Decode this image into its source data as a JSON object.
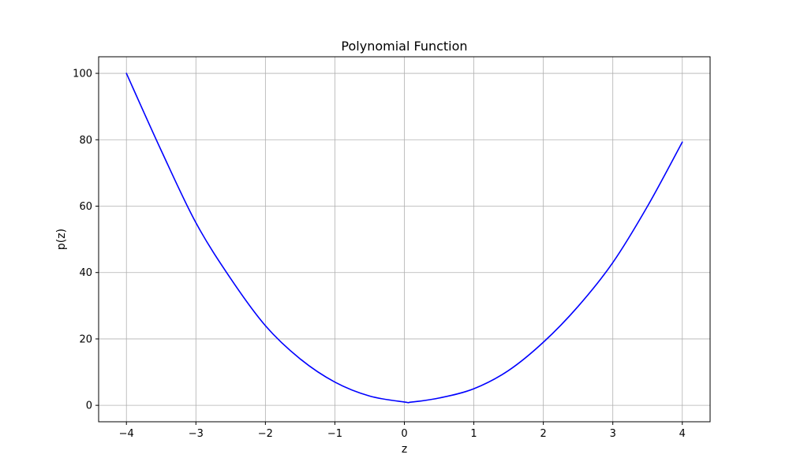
{
  "chart_data": {
    "type": "line",
    "title": "Polynomial Function",
    "xlabel": "z",
    "ylabel": "p(z)",
    "xlim": [
      -4.4,
      4.4
    ],
    "ylim": [
      -4.95,
      105
    ],
    "xticks": [
      -4,
      -3,
      -2,
      -1,
      0,
      1,
      2,
      3,
      4
    ],
    "xtick_labels": [
      "−4",
      "−3",
      "−2",
      "−1",
      "0",
      "1",
      "2",
      "3",
      "4"
    ],
    "yticks": [
      0,
      20,
      40,
      60,
      80,
      100
    ],
    "ytick_labels": [
      "0",
      "20",
      "40",
      "60",
      "80",
      "100"
    ],
    "grid": true,
    "series": [
      {
        "color": "#0000ff",
        "x": [
          -4,
          -3.5,
          -3,
          -2.5,
          -2,
          -1.5,
          -1,
          -0.5,
          0,
          0.1,
          0.5,
          1,
          1.5,
          2,
          2.5,
          3,
          3.5,
          4
        ],
        "y": [
          100,
          76.8,
          55,
          38.2,
          24,
          14,
          7,
          2.8,
          1,
          0.97,
          2.2,
          5,
          10.5,
          19,
          29.8,
          43,
          60,
          79.3
        ]
      }
    ]
  }
}
